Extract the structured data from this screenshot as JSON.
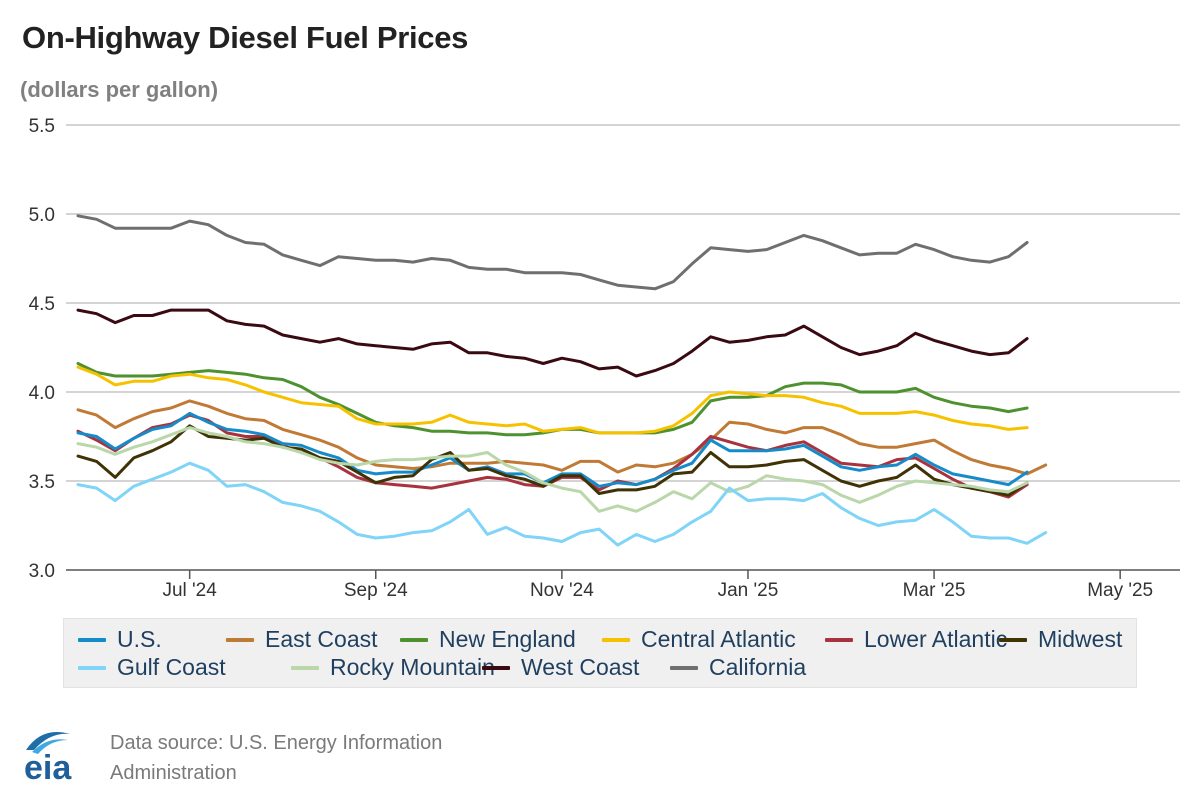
{
  "header": {
    "title": "On-Highway Diesel Fuel Prices",
    "subtitle": "(dollars per gallon)"
  },
  "footer": {
    "source_line1": "Data source: U.S. Energy Information",
    "source_line2": "Administration",
    "logo_text": "eia"
  },
  "chart_data": {
    "type": "line",
    "title": "On-Highway Diesel Fuel Prices",
    "ylabel": "(dollars per gallon)",
    "xlabel": "",
    "ylim": [
      3.0,
      5.5
    ],
    "yticks": [
      3.0,
      3.5,
      4.0,
      4.5,
      5.0,
      5.5
    ],
    "ytick_labels": [
      "3.0",
      "3.5",
      "4.0",
      "4.5",
      "5.0",
      "5.5"
    ],
    "grid": true,
    "legend_position": "bottom",
    "x_labels": [
      {
        "label": "Jul '24",
        "index": 6
      },
      {
        "label": "Sep '24",
        "index": 16
      },
      {
        "label": "Nov '24",
        "index": 26
      },
      {
        "label": "Jan '25",
        "index": 36
      },
      {
        "label": "Mar '25",
        "index": 46
      },
      {
        "label": "May '25",
        "index": 56
      }
    ],
    "x_count": 60,
    "series": [
      {
        "name": "California",
        "color": "#6f6f6f",
        "values": [
          4.99,
          4.97,
          4.92,
          4.92,
          4.92,
          4.92,
          4.96,
          4.94,
          4.88,
          4.84,
          4.83,
          4.77,
          4.74,
          4.71,
          4.76,
          4.75,
          4.74,
          4.74,
          4.73,
          4.75,
          4.74,
          4.7,
          4.69,
          4.69,
          4.67,
          4.67,
          4.67,
          4.66,
          4.63,
          4.6,
          4.59,
          4.58,
          4.62,
          4.72,
          4.81,
          4.8,
          4.79,
          4.8,
          4.84,
          4.88,
          4.85,
          4.81,
          4.77,
          4.78,
          4.78,
          4.83,
          4.8,
          4.76,
          4.74,
          4.73,
          4.76,
          4.84
        ]
      },
      {
        "name": "West Coast",
        "color": "#3a0a12",
        "values": [
          4.46,
          4.44,
          4.39,
          4.43,
          4.43,
          4.46,
          4.46,
          4.46,
          4.4,
          4.38,
          4.37,
          4.32,
          4.3,
          4.28,
          4.3,
          4.27,
          4.26,
          4.25,
          4.24,
          4.27,
          4.28,
          4.22,
          4.22,
          4.2,
          4.19,
          4.16,
          4.19,
          4.17,
          4.13,
          4.14,
          4.09,
          4.12,
          4.16,
          4.23,
          4.31,
          4.28,
          4.29,
          4.31,
          4.32,
          4.37,
          4.31,
          4.25,
          4.21,
          4.23,
          4.26,
          4.33,
          4.29,
          4.26,
          4.23,
          4.21,
          4.22,
          4.3
        ]
      },
      {
        "name": "New England",
        "color": "#4e9230",
        "values": [
          4.16,
          4.11,
          4.09,
          4.09,
          4.09,
          4.1,
          4.11,
          4.12,
          4.11,
          4.1,
          4.08,
          4.07,
          4.03,
          3.97,
          3.93,
          3.88,
          3.83,
          3.81,
          3.8,
          3.78,
          3.78,
          3.77,
          3.77,
          3.76,
          3.76,
          3.77,
          3.79,
          3.79,
          3.77,
          3.77,
          3.77,
          3.77,
          3.79,
          3.83,
          3.95,
          3.97,
          3.97,
          3.98,
          4.03,
          4.05,
          4.05,
          4.04,
          4.0,
          4.0,
          4.0,
          4.02,
          3.97,
          3.94,
          3.92,
          3.91,
          3.89,
          3.91
        ]
      },
      {
        "name": "Central Atlantic",
        "color": "#f6c200",
        "values": [
          4.14,
          4.1,
          4.04,
          4.06,
          4.06,
          4.09,
          4.1,
          4.08,
          4.07,
          4.04,
          4.0,
          3.97,
          3.94,
          3.93,
          3.92,
          3.85,
          3.82,
          3.82,
          3.82,
          3.83,
          3.87,
          3.83,
          3.82,
          3.81,
          3.82,
          3.78,
          3.79,
          3.8,
          3.77,
          3.77,
          3.77,
          3.78,
          3.81,
          3.88,
          3.98,
          4.0,
          3.99,
          3.98,
          3.98,
          3.97,
          3.94,
          3.92,
          3.88,
          3.88,
          3.88,
          3.89,
          3.87,
          3.84,
          3.82,
          3.81,
          3.79,
          3.8
        ]
      },
      {
        "name": "East Coast",
        "color": "#c07a35",
        "values": [
          3.9,
          3.87,
          3.8,
          3.85,
          3.89,
          3.91,
          3.95,
          3.92,
          3.88,
          3.85,
          3.84,
          3.79,
          3.76,
          3.73,
          3.69,
          3.63,
          3.59,
          3.58,
          3.57,
          3.58,
          3.6,
          3.6,
          3.6,
          3.61,
          3.6,
          3.59,
          3.56,
          3.61,
          3.61,
          3.55,
          3.59,
          3.58,
          3.6,
          3.65,
          3.73,
          3.83,
          3.82,
          3.79,
          3.77,
          3.8,
          3.8,
          3.76,
          3.71,
          3.69,
          3.69,
          3.71,
          3.73,
          3.67,
          3.62,
          3.59,
          3.57,
          3.54,
          3.59
        ]
      },
      {
        "name": "Lower Atlantic",
        "color": "#a8333f",
        "values": [
          3.78,
          3.73,
          3.67,
          3.74,
          3.8,
          3.82,
          3.87,
          3.84,
          3.77,
          3.75,
          3.75,
          3.7,
          3.66,
          3.63,
          3.58,
          3.52,
          3.49,
          3.48,
          3.47,
          3.46,
          3.48,
          3.5,
          3.52,
          3.51,
          3.48,
          3.47,
          3.52,
          3.52,
          3.45,
          3.5,
          3.48,
          3.51,
          3.57,
          3.65,
          3.75,
          3.72,
          3.69,
          3.67,
          3.7,
          3.72,
          3.66,
          3.6,
          3.59,
          3.58,
          3.62,
          3.63,
          3.57,
          3.51,
          3.46,
          3.44,
          3.41,
          3.48
        ]
      },
      {
        "name": "U.S.",
        "color": "#168bc9",
        "values": [
          3.77,
          3.75,
          3.68,
          3.74,
          3.79,
          3.81,
          3.88,
          3.83,
          3.79,
          3.78,
          3.76,
          3.71,
          3.7,
          3.66,
          3.63,
          3.56,
          3.54,
          3.55,
          3.55,
          3.59,
          3.63,
          3.56,
          3.58,
          3.54,
          3.54,
          3.49,
          3.54,
          3.54,
          3.47,
          3.49,
          3.48,
          3.51,
          3.56,
          3.6,
          3.73,
          3.67,
          3.67,
          3.67,
          3.68,
          3.7,
          3.64,
          3.58,
          3.56,
          3.58,
          3.59,
          3.65,
          3.59,
          3.54,
          3.52,
          3.5,
          3.48,
          3.55
        ]
      },
      {
        "name": "Midwest",
        "color": "#3f3205",
        "values": [
          3.64,
          3.61,
          3.52,
          3.63,
          3.67,
          3.72,
          3.81,
          3.75,
          3.74,
          3.73,
          3.74,
          3.69,
          3.68,
          3.63,
          3.61,
          3.55,
          3.49,
          3.52,
          3.53,
          3.62,
          3.66,
          3.56,
          3.57,
          3.53,
          3.51,
          3.47,
          3.53,
          3.53,
          3.43,
          3.45,
          3.45,
          3.47,
          3.54,
          3.55,
          3.66,
          3.58,
          3.58,
          3.59,
          3.61,
          3.62,
          3.56,
          3.5,
          3.47,
          3.5,
          3.52,
          3.59,
          3.51,
          3.48,
          3.46,
          3.44,
          3.42,
          3.49
        ]
      },
      {
        "name": "Rocky Mountain",
        "color": "#b9d7a9",
        "values": [
          3.71,
          3.69,
          3.65,
          3.69,
          3.72,
          3.76,
          3.8,
          3.77,
          3.75,
          3.72,
          3.71,
          3.69,
          3.66,
          3.62,
          3.6,
          3.59,
          3.61,
          3.62,
          3.62,
          3.63,
          3.64,
          3.64,
          3.66,
          3.59,
          3.55,
          3.49,
          3.46,
          3.44,
          3.33,
          3.36,
          3.33,
          3.38,
          3.44,
          3.4,
          3.49,
          3.44,
          3.47,
          3.53,
          3.51,
          3.5,
          3.48,
          3.42,
          3.38,
          3.42,
          3.47,
          3.5,
          3.49,
          3.48,
          3.47,
          3.45,
          3.44,
          3.49
        ]
      },
      {
        "name": "Gulf Coast",
        "color": "#7fd4f7",
        "values": [
          3.48,
          3.46,
          3.39,
          3.47,
          3.51,
          3.55,
          3.6,
          3.56,
          3.47,
          3.48,
          3.44,
          3.38,
          3.36,
          3.33,
          3.27,
          3.2,
          3.18,
          3.19,
          3.21,
          3.22,
          3.27,
          3.34,
          3.2,
          3.24,
          3.19,
          3.18,
          3.16,
          3.21,
          3.23,
          3.14,
          3.2,
          3.16,
          3.2,
          3.27,
          3.33,
          3.46,
          3.39,
          3.4,
          3.4,
          3.39,
          3.43,
          3.35,
          3.29,
          3.25,
          3.27,
          3.28,
          3.34,
          3.27,
          3.19,
          3.18,
          3.18,
          3.15,
          3.21
        ]
      }
    ],
    "legend_order": [
      "U.S.",
      "East Coast",
      "New England",
      "Central Atlantic",
      "Lower Atlantic",
      "Midwest",
      "Gulf Coast",
      "Rocky Mountain",
      "West Coast",
      "California"
    ]
  }
}
